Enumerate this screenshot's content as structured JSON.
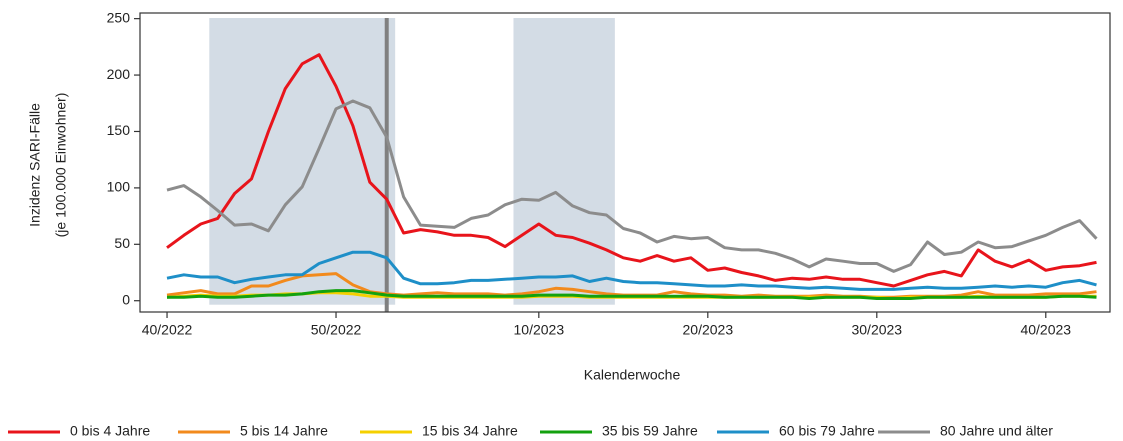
{
  "chart_data": {
    "type": "line",
    "xlabel": "Kalenderwoche",
    "ylabel": [
      "Inzidenz SARI-Fälle",
      "(je 100.000 Einwohner)"
    ],
    "x": [
      0,
      1,
      2,
      3,
      4,
      5,
      6,
      7,
      8,
      9,
      10,
      11,
      12,
      13,
      14,
      15,
      16,
      17,
      18,
      19,
      20,
      21,
      22,
      23,
      24,
      25,
      26,
      27,
      28,
      29,
      30,
      31,
      32,
      33,
      34,
      35,
      36,
      37,
      38,
      39,
      40,
      41,
      42,
      43,
      44,
      45,
      46,
      47,
      48,
      49,
      50,
      51,
      52,
      53,
      54,
      55
    ],
    "xlim": [
      -1.6,
      55.8
    ],
    "xticks": [
      {
        "value": 0,
        "label": "40/2022"
      },
      {
        "value": 10,
        "label": "50/2022"
      },
      {
        "value": 22,
        "label": "10/2023"
      },
      {
        "value": 32,
        "label": "20/2023"
      },
      {
        "value": 42,
        "label": "30/2023"
      },
      {
        "value": 52,
        "label": "40/2023"
      }
    ],
    "ylim": [
      -10,
      255
    ],
    "yticks": [
      0,
      50,
      100,
      150,
      200,
      250
    ],
    "shaded_ranges": [
      [
        2.5,
        13.5
      ],
      [
        20.5,
        26.5
      ]
    ],
    "shade_color": "#d3dce5",
    "vline": 13,
    "vline_color": "#808080",
    "series": [
      {
        "name": "0 bis 4 Jahre",
        "color": "#e8141b",
        "values": [
          47,
          58,
          68,
          73,
          95,
          108,
          150,
          188,
          210,
          218,
          190,
          155,
          105,
          90,
          60,
          63,
          61,
          58,
          58,
          56,
          48,
          58,
          68,
          58,
          56,
          51,
          45,
          38,
          35,
          40,
          35,
          38,
          27,
          29,
          25,
          22,
          18,
          20,
          19,
          21,
          19,
          19,
          16,
          13,
          18,
          23,
          26,
          22,
          45,
          35,
          30,
          36,
          27,
          30,
          31,
          34
        ]
      },
      {
        "name": "5 bis 14 Jahre",
        "color": "#f28a1c",
        "values": [
          5,
          7,
          9,
          6,
          6,
          13,
          13,
          18,
          22,
          23,
          24,
          14,
          8,
          6,
          5,
          6,
          7,
          6,
          6,
          6,
          5,
          6,
          8,
          11,
          10,
          8,
          6,
          5,
          5,
          5,
          8,
          6,
          5,
          5,
          4,
          5,
          4,
          4,
          4,
          5,
          4,
          4,
          3,
          3,
          4,
          4,
          4,
          5,
          8,
          5,
          5,
          5,
          6,
          6,
          6,
          8
        ]
      },
      {
        "name": "15 bis 34 Jahre",
        "color": "#f5d000",
        "values": [
          3,
          4,
          5,
          4,
          4,
          5,
          5,
          6,
          6,
          7,
          7,
          6,
          4,
          4,
          3,
          3,
          3,
          3,
          3,
          3,
          3,
          3,
          4,
          4,
          4,
          3,
          3,
          3,
          3,
          3,
          3,
          3,
          3,
          3,
          3,
          3,
          3,
          3,
          3,
          3,
          3,
          3,
          3,
          2,
          3,
          3,
          3,
          3,
          4,
          3,
          3,
          3,
          3,
          4,
          4,
          4
        ]
      },
      {
        "name": "35 bis 59 Jahre",
        "color": "#13a10e",
        "values": [
          3,
          3,
          4,
          3,
          3,
          4,
          5,
          5,
          6,
          8,
          9,
          9,
          7,
          5,
          4,
          4,
          4,
          4,
          4,
          4,
          4,
          4,
          5,
          5,
          5,
          4,
          4,
          4,
          4,
          4,
          4,
          4,
          4,
          3,
          3,
          3,
          3,
          3,
          2,
          3,
          3,
          3,
          2,
          2,
          2,
          3,
          3,
          3,
          3,
          3,
          3,
          3,
          3,
          4,
          4,
          3
        ]
      },
      {
        "name": "60 bis 79 Jahre",
        "color": "#1e8fc8",
        "values": [
          20,
          23,
          21,
          21,
          16,
          19,
          21,
          23,
          23,
          33,
          38,
          43,
          43,
          38,
          20,
          15,
          15,
          16,
          18,
          18,
          19,
          20,
          21,
          21,
          22,
          17,
          20,
          17,
          16,
          16,
          15,
          14,
          13,
          13,
          14,
          13,
          13,
          12,
          11,
          12,
          11,
          10,
          10,
          10,
          11,
          12,
          11,
          11,
          12,
          13,
          12,
          13,
          12,
          16,
          18,
          14
        ]
      },
      {
        "name": "80 Jahre und älter",
        "color": "#8c8c8c",
        "values": [
          98,
          102,
          92,
          80,
          67,
          68,
          62,
          85,
          101,
          135,
          170,
          177,
          171,
          145,
          92,
          67,
          66,
          65,
          73,
          76,
          85,
          90,
          89,
          96,
          84,
          78,
          76,
          64,
          60,
          52,
          57,
          55,
          56,
          47,
          45,
          45,
          42,
          37,
          30,
          37,
          35,
          33,
          33,
          26,
          32,
          52,
          41,
          43,
          52,
          47,
          48,
          53,
          58,
          65,
          71,
          55
        ]
      }
    ]
  }
}
